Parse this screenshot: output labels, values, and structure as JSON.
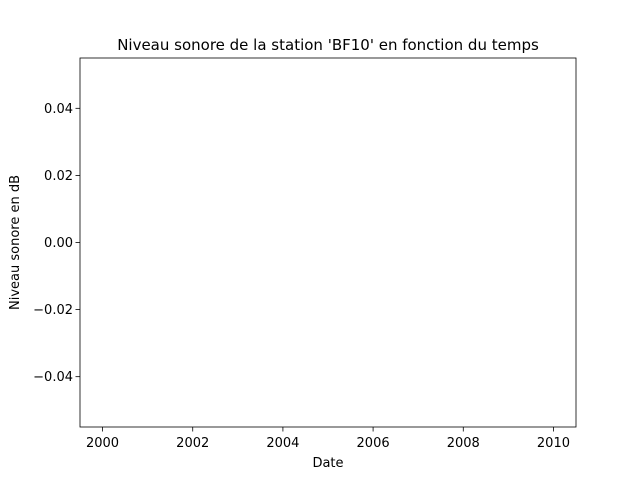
{
  "chart_data": {
    "type": "line",
    "title": "Niveau sonore de la station 'BF10' en fonction du temps",
    "xlabel": "Date",
    "ylabel": "Niveau sonore en dB",
    "xlim": [
      1999.5,
      2010.5
    ],
    "ylim": [
      -0.055,
      0.055
    ],
    "x_ticks": [
      2000,
      2002,
      2004,
      2006,
      2008,
      2010
    ],
    "x_tick_labels": [
      "2000",
      "2002",
      "2004",
      "2006",
      "2008",
      "2010"
    ],
    "y_ticks": [
      0.04,
      0.02,
      0.0,
      -0.02,
      -0.04
    ],
    "y_tick_labels": [
      "0.04",
      "0.02",
      "0.00",
      "−0.02",
      "−0.04"
    ],
    "grid": false,
    "series": [
      {
        "x": [],
        "y": []
      }
    ]
  }
}
